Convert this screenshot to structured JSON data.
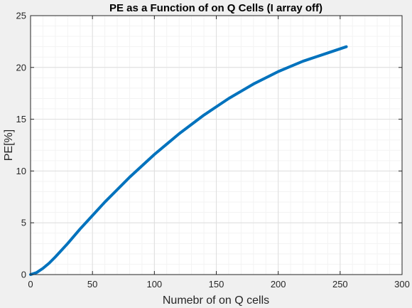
{
  "chart_data": {
    "type": "line",
    "title": "PE as a Function of on Q Cells (I array off)",
    "xlabel": "Numebr of on Q cells",
    "ylabel": "PE[%]",
    "xlim": [
      0,
      300
    ],
    "ylim": [
      0,
      25
    ],
    "xticks": [
      0,
      50,
      100,
      150,
      200,
      250,
      300
    ],
    "yticks": [
      0,
      5,
      10,
      15,
      20,
      25
    ],
    "grid": true,
    "minor_grid": true,
    "series": [
      {
        "color": "#0072bd",
        "x": [
          0,
          5,
          10,
          15,
          20,
          30,
          40,
          50,
          60,
          70,
          80,
          90,
          100,
          110,
          120,
          130,
          140,
          150,
          160,
          170,
          180,
          190,
          200,
          210,
          220,
          230,
          240,
          255
        ],
        "y": [
          0,
          0.2,
          0.6,
          1.1,
          1.7,
          3.0,
          4.4,
          5.7,
          7.0,
          8.2,
          9.4,
          10.5,
          11.6,
          12.6,
          13.6,
          14.5,
          15.4,
          16.2,
          17.0,
          17.7,
          18.4,
          19.0,
          19.6,
          20.1,
          20.6,
          21.0,
          21.4,
          22.0
        ]
      }
    ]
  }
}
